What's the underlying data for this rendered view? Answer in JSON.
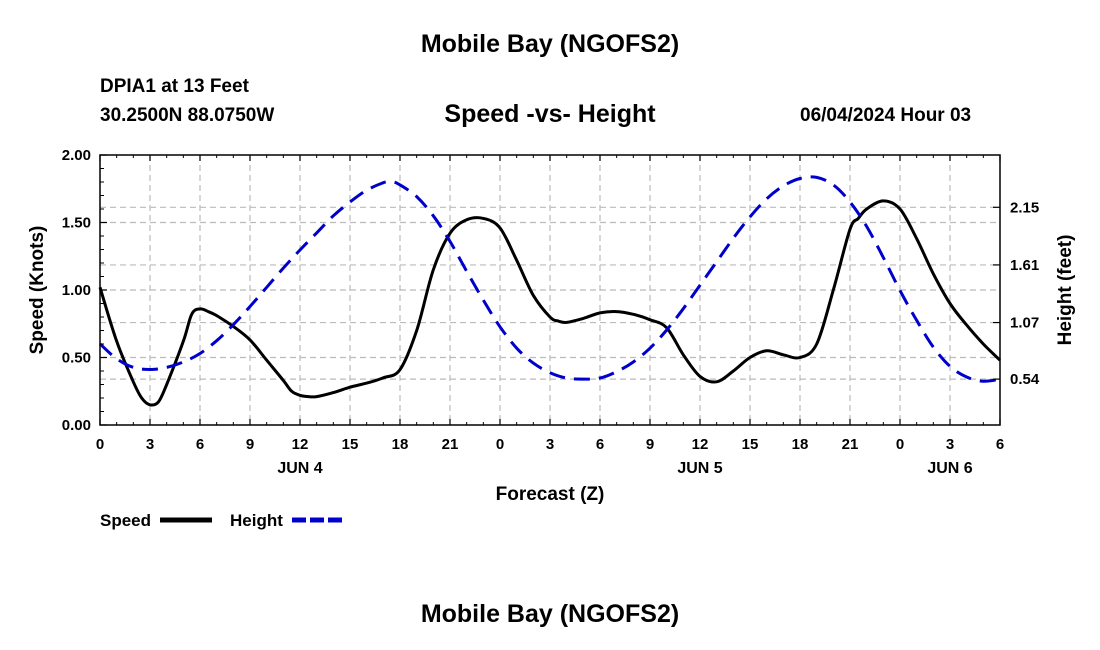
{
  "header": {
    "title": "Mobile Bay (NGOFS2)",
    "station": "DPIA1 at 13 Feet",
    "coordinates": "30.2500N  88.0750W",
    "timestamp": "06/04/2024 Hour 03"
  },
  "footer": {
    "title": "Mobile Bay (NGOFS2)"
  },
  "chart_data": {
    "type": "line",
    "title": "Speed -vs- Height",
    "xlabel": "Forecast (Z)",
    "ylabel_left": "Speed (Knots)",
    "ylabel_right": "Height (feet)",
    "x_unit": "hours",
    "x_range": [
      0,
      54
    ],
    "x_tick_labels": [
      "0",
      "3",
      "6",
      "9",
      "12",
      "15",
      "18",
      "21",
      "0",
      "3",
      "6",
      "9",
      "12",
      "15",
      "18",
      "21",
      "0",
      "3",
      "6"
    ],
    "day_labels": [
      {
        "label": "JUN 4",
        "at": 12
      },
      {
        "label": "JUN 5",
        "at": 36
      },
      {
        "label": "JUN 6",
        "at": 51
      }
    ],
    "left_axis": {
      "ylim": [
        0,
        2.0
      ],
      "ticks": [
        "0.00",
        "0.50",
        "1.00",
        "1.50",
        "2.00"
      ],
      "tick_values": [
        0,
        0.5,
        1.0,
        1.5,
        2.0
      ]
    },
    "right_axis": {
      "ylim": [
        0.11,
        2.64
      ],
      "ticks": [
        "0.54",
        "1.07",
        "1.61",
        "2.15"
      ],
      "tick_values": [
        0.54,
        1.07,
        1.61,
        2.15
      ]
    },
    "grid": true,
    "legend_position": "bottom-left",
    "series": [
      {
        "name": "Speed",
        "axis": "left",
        "color": "#000000",
        "dash": "solid",
        "x": [
          0,
          1,
          2,
          2.5,
          3,
          3.5,
          4,
          5,
          5.5,
          6,
          6.5,
          7,
          8,
          9,
          10,
          11,
          11.5,
          12,
          12.5,
          13,
          14,
          15,
          16,
          17,
          18,
          19,
          20,
          21,
          22,
          23,
          24,
          25,
          26,
          27,
          27.5,
          28,
          29,
          30,
          31,
          32,
          33,
          34,
          35,
          36,
          37,
          38,
          39,
          40,
          41,
          42,
          43,
          44,
          45,
          45.5,
          46,
          47,
          48,
          49,
          50,
          51,
          52,
          53,
          54
        ],
        "values": [
          1.02,
          0.62,
          0.32,
          0.2,
          0.15,
          0.17,
          0.3,
          0.62,
          0.82,
          0.86,
          0.84,
          0.81,
          0.73,
          0.63,
          0.48,
          0.33,
          0.25,
          0.22,
          0.21,
          0.21,
          0.24,
          0.28,
          0.31,
          0.35,
          0.41,
          0.7,
          1.15,
          1.42,
          1.52,
          1.53,
          1.46,
          1.22,
          0.96,
          0.8,
          0.77,
          0.76,
          0.79,
          0.83,
          0.84,
          0.82,
          0.78,
          0.72,
          0.52,
          0.36,
          0.32,
          0.4,
          0.5,
          0.55,
          0.52,
          0.5,
          0.6,
          1.0,
          1.45,
          1.53,
          1.6,
          1.66,
          1.6,
          1.38,
          1.12,
          0.9,
          0.74,
          0.6,
          0.48
        ]
      },
      {
        "name": "Height",
        "axis": "right",
        "color": "#0000cc",
        "dash": "dashed",
        "x": [
          0,
          1,
          2,
          3,
          4,
          5,
          6,
          7,
          8,
          9,
          10,
          11,
          12,
          13,
          14,
          15,
          16,
          17,
          17.5,
          18,
          19,
          20,
          21,
          22,
          23,
          24,
          25,
          26,
          27,
          28,
          29,
          30,
          31,
          32,
          33,
          34,
          35,
          36,
          37,
          38,
          39,
          40,
          41,
          42,
          43,
          44,
          45,
          46,
          47,
          48,
          49,
          50,
          51,
          52,
          53,
          54
        ],
        "values": [
          0.87,
          0.73,
          0.65,
          0.63,
          0.65,
          0.7,
          0.78,
          0.9,
          1.05,
          1.22,
          1.4,
          1.58,
          1.75,
          1.91,
          2.07,
          2.2,
          2.31,
          2.38,
          2.39,
          2.36,
          2.25,
          2.07,
          1.83,
          1.55,
          1.28,
          1.03,
          0.83,
          0.69,
          0.6,
          0.55,
          0.54,
          0.55,
          0.61,
          0.7,
          0.83,
          1.0,
          1.2,
          1.42,
          1.64,
          1.86,
          2.06,
          2.23,
          2.35,
          2.42,
          2.43,
          2.36,
          2.2,
          1.97,
          1.68,
          1.37,
          1.09,
          0.84,
          0.66,
          0.56,
          0.52,
          0.54
        ]
      }
    ]
  }
}
